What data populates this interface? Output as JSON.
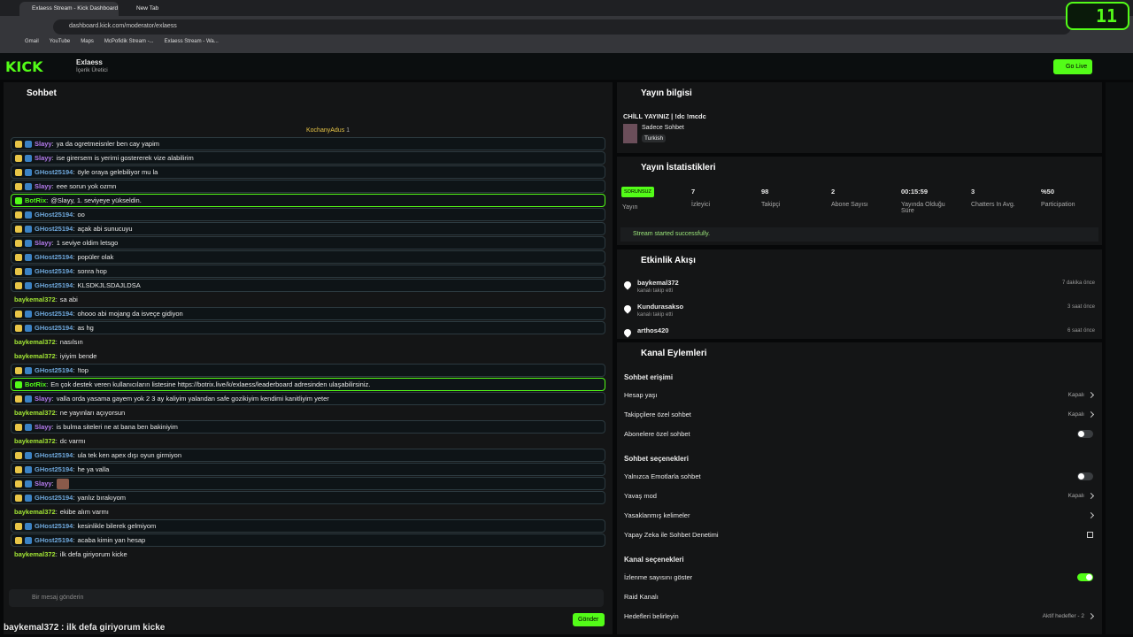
{
  "browser": {
    "tabs": [
      "Exlaess Stream - Kick Dashboard",
      "New Tab"
    ],
    "url": "dashboard.kick.com/moderator/exlaess",
    "bookmarks": [
      "Gmail",
      "YouTube",
      "Maps",
      "McPofidik Stream -...",
      "Exlaess Stream - Wa..."
    ],
    "badge": "11"
  },
  "header": {
    "logo": "KICK",
    "channel": "Exlaess",
    "role": "İçerik Üretici",
    "go_live": "Go Live"
  },
  "chat": {
    "title": "Sohbet",
    "pinned_user": "KochanyAdus",
    "pinned_count": "1",
    "separator": ":",
    "messages": [
      {
        "user": "Slayy",
        "text": "ya da ogretmeisnler ben cay yapim",
        "kind": "sub"
      },
      {
        "user": "Slayy",
        "text": "ise girersem is yerimi gostererek vize alabilirim",
        "kind": "sub"
      },
      {
        "user": "GHost25194",
        "text": "öyle oraya gelebiliyor mu la",
        "kind": "mod"
      },
      {
        "user": "Slayy",
        "text": "eee sorun yok ozmn",
        "kind": "sub"
      },
      {
        "user": "BotRix",
        "text": "@Slayy, 1. seviyeye yükseldin.",
        "kind": "bot"
      },
      {
        "user": "GHost25194",
        "text": "oo",
        "kind": "mod"
      },
      {
        "user": "GHost25194",
        "text": "açak abi sunucuyu",
        "kind": "mod"
      },
      {
        "user": "Slayy",
        "text": "1 seviye oldim letsgo",
        "kind": "sub"
      },
      {
        "user": "GHost25194",
        "text": "popüler olak",
        "kind": "mod"
      },
      {
        "user": "GHost25194",
        "text": "sonra hop",
        "kind": "mod"
      },
      {
        "user": "GHost25194",
        "text": "KLSDKJLSDAJLDSA",
        "kind": "mod"
      },
      {
        "user": "baykemal372",
        "text": "sa abi",
        "kind": "plain"
      },
      {
        "user": "GHost25194",
        "text": "ohooo abi mojang da isveçe gidiyon",
        "kind": "mod"
      },
      {
        "user": "GHost25194",
        "text": "as hg",
        "kind": "mod"
      },
      {
        "user": "baykemal372",
        "text": "nasılsın",
        "kind": "plain"
      },
      {
        "user": "baykemal372",
        "text": "iyiyim bende",
        "kind": "plain"
      },
      {
        "user": "GHost25194",
        "text": "!top",
        "kind": "mod"
      },
      {
        "user": "BotRix",
        "text": "En çok destek veren kullanıcıların listesine https://botrix.live/k/exlaess/leaderboard adresinden ulaşabilirsiniz.",
        "kind": "bot"
      },
      {
        "user": "Slayy",
        "text": "valla orda yasama gayem yok 2 3 ay kaliyim yalandan safe gozikiyim kendimi kanitliyim yeter",
        "kind": "sub"
      },
      {
        "user": "baykemal372",
        "text": "ne yayınları açıyorsun",
        "kind": "plain"
      },
      {
        "user": "Slayy",
        "text": "is bulma siteleri ne at bana ben bakiniyim",
        "kind": "sub"
      },
      {
        "user": "baykemal372",
        "text": "dc varmı",
        "kind": "plain"
      },
      {
        "user": "GHost25194",
        "text": "ula tek ken apex dışı oyun girmiyon",
        "kind": "mod"
      },
      {
        "user": "GHost25194",
        "text": "he ya valla",
        "kind": "mod"
      },
      {
        "user": "Slayy",
        "kind": "sub"
      },
      {
        "user": "GHost25194",
        "text": "yanlız bırakıyom",
        "kind": "mod"
      },
      {
        "user": "baykemal372",
        "text": "ekibe alım varmı",
        "kind": "plain"
      },
      {
        "user": "GHost25194",
        "text": "kesinlikle bilerek gelmiyom",
        "kind": "mod"
      },
      {
        "user": "GHost25194",
        "text": "acaba kimin yan hesap",
        "kind": "mod"
      },
      {
        "user": "baykemal372",
        "text": "ilk defa giriyorum kicke",
        "kind": "plain"
      }
    ],
    "placeholder": "Bir mesaj gönderin",
    "send": "Gönder"
  },
  "caption": "baykemal372 : ilk defa giriyorum kicke",
  "stream_info": {
    "title": "Yayın bilgisi",
    "stream_title": "CHİLL YAYINIZ | !dc !mcdc",
    "category": "Sadece Sohbet",
    "tag": "Turkish"
  },
  "stats": {
    "title": "Yayın İstatistikleri",
    "status_badge": "SORUNSUZ",
    "status_label": "Yayın",
    "items": [
      {
        "value": 7,
        "label": "İzleyici"
      },
      {
        "value": 98,
        "label": "Takipçi"
      },
      {
        "value": 2,
        "label": "Abone Sayısı"
      },
      {
        "value": "00:15:59",
        "label": "Yayında Olduğu Süre"
      },
      {
        "value": 3,
        "label": "Chatters In Avg."
      },
      {
        "value": "%50",
        "label": "Participation"
      }
    ],
    "message": "Stream started successfully."
  },
  "activity": {
    "title": "Etkinlik Akışı",
    "events": [
      {
        "user": "baykemal372",
        "action": "kanalı takip etti",
        "time": "7 dakika önce"
      },
      {
        "user": "Kundurasakso",
        "action": "kanalı takip etti",
        "time": "3 saat önce"
      },
      {
        "user": "arthos420",
        "time": "6 saat önce"
      }
    ]
  },
  "actions": {
    "title": "Kanal Eylemleri",
    "sections": [
      {
        "title": "Sohbet erişimi",
        "items": [
          {
            "label": "Hesap yaşı",
            "value": "Kapalı",
            "chevron": true
          },
          {
            "label": "Takipçilere özel sohbet",
            "value": "Kapalı",
            "chevron": true
          },
          {
            "label": "Abonelere özel sohbet",
            "toggle": false
          }
        ]
      },
      {
        "title": "Sohbet seçenekleri",
        "items": [
          {
            "label": "Yalnızca Emotlarla sohbet",
            "toggle": false
          },
          {
            "label": "Yavaş mod",
            "value": "Kapalı",
            "chevron": true
          },
          {
            "label": "Yasaklanmış kelimeler",
            "chevron": true
          },
          {
            "label": "Yapay Zeka ile Sohbet Denetimi",
            "external": true
          }
        ]
      },
      {
        "title": "Kanal seçenekleri",
        "items": [
          {
            "label": "İzlenme sayısını göster",
            "toggle": true
          },
          {
            "label": "Raid Kanalı"
          },
          {
            "label": "Hedefleri belirleyin",
            "value": "Aktif hedefler - 2",
            "chevron": true
          }
        ]
      }
    ]
  }
}
